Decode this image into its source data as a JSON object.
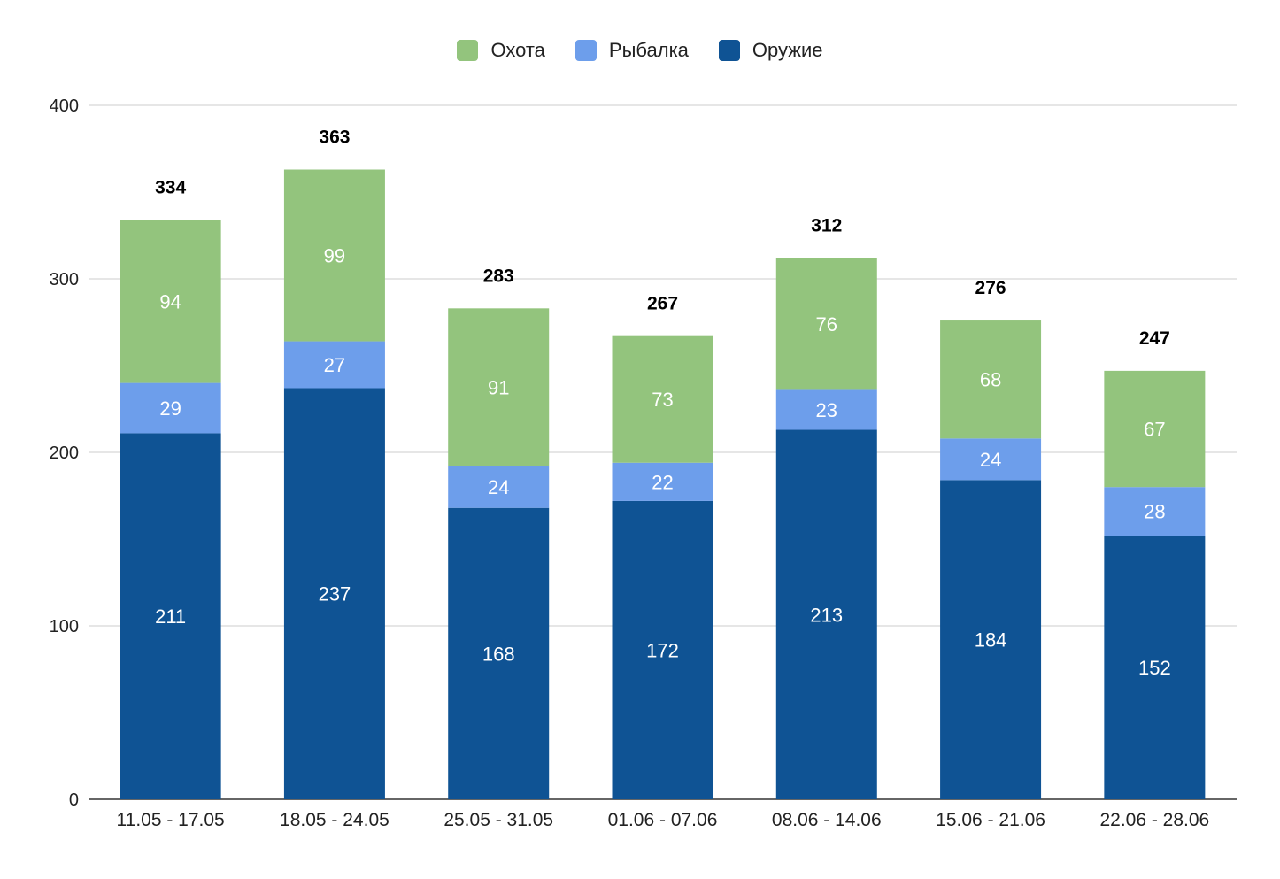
{
  "chart_data": {
    "type": "bar",
    "stacked": true,
    "categories": [
      "11.05 - 17.05",
      "18.05 - 24.05",
      "25.05 - 31.05",
      "01.06 - 07.06",
      "08.06 - 14.06",
      "15.06 - 21.06",
      "22.06 - 28.06"
    ],
    "series": [
      {
        "name": "Оружие",
        "color": "#0f5394",
        "values": [
          211,
          237,
          168,
          172,
          213,
          184,
          152
        ]
      },
      {
        "name": "Рыбалка",
        "color": "#6d9eeb",
        "values": [
          29,
          27,
          24,
          22,
          23,
          24,
          28
        ]
      },
      {
        "name": "Охота",
        "color": "#93c47d",
        "values": [
          94,
          99,
          91,
          73,
          76,
          68,
          67
        ]
      }
    ],
    "totals": [
      334,
      363,
      283,
      267,
      312,
      276,
      247
    ],
    "legend_order": [
      "Охота",
      "Рыбалка",
      "Оружие"
    ],
    "legend_position": "top-center",
    "ylim": [
      0,
      400
    ],
    "yticks": [
      0,
      100,
      200,
      300,
      400
    ],
    "grid": true,
    "title": "",
    "xlabel": "",
    "ylabel": ""
  }
}
